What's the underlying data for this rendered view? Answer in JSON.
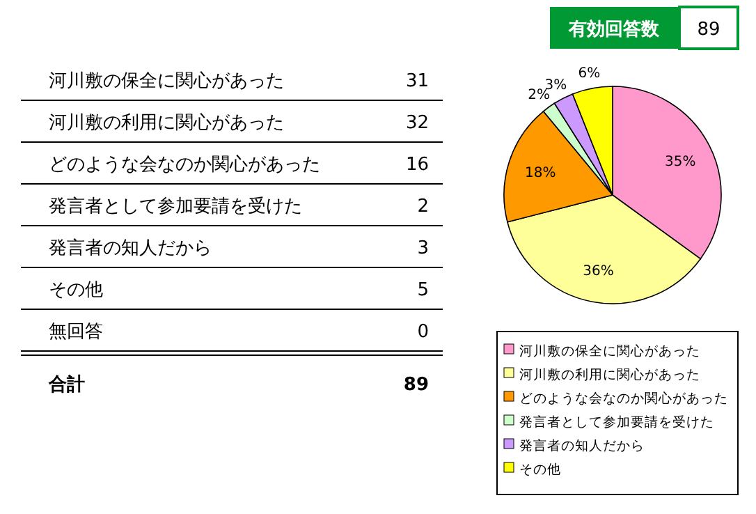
{
  "chart_data": [
    {
      "type": "other",
      "categories": [
        "河川敷の保全に関心があった",
        "河川敷の利用に関心があった",
        "どのような会なのか関心があった",
        "発言者として参加要請を受けた",
        "発言者の知人だから",
        "その他",
        "無回答"
      ],
      "values": [
        31,
        32,
        16,
        2,
        3,
        5,
        0
      ],
      "data_labels": true,
      "annotations": [
        "合計",
        "89"
      ]
    },
    {
      "type": "pie",
      "title": "有効回答数",
      "subtitle": "89",
      "categories": [
        "河川敷の保全に関心があった",
        "河川敷の利用に関心があった",
        "どのような会なのか関心があった",
        "発言者として参加要請を受けた",
        "発言者の知人だから",
        "その他"
      ],
      "values": [
        35,
        36,
        18,
        2,
        3,
        6
      ],
      "value_labels": [
        "35%",
        "36%",
        "18%",
        "2%",
        "3%",
        "6%"
      ],
      "colors": [
        "#ff99cc",
        "#ffff99",
        "#ff9900",
        "#ccffcc",
        "#cc99ff",
        "#ffff00"
      ],
      "legend": "bottom"
    }
  ]
}
